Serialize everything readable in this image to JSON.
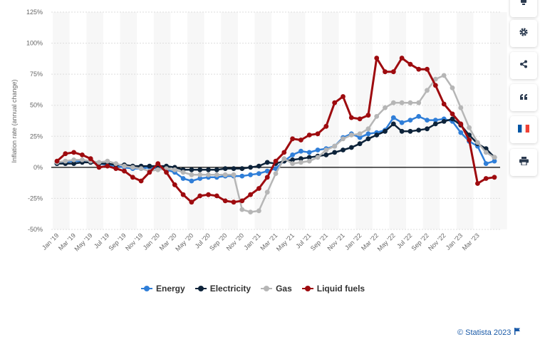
{
  "chart_data": {
    "type": "line",
    "title": "",
    "xlabel": "",
    "ylabel": "Inflation rate (annual change)",
    "ylim": [
      -50,
      125
    ],
    "yticks": [
      "125%",
      "100%",
      "75%",
      "50%",
      "25%",
      "0%",
      "-25%",
      "-50%"
    ],
    "ytick_values": [
      125,
      100,
      75,
      50,
      25,
      0,
      -25,
      -50
    ],
    "grid": true,
    "legend": "bottom",
    "x": [
      "Jan '19",
      "Feb '19",
      "Mar '19",
      "Apr '19",
      "May '19",
      "Jun '19",
      "Jul '19",
      "Aug '19",
      "Sep '19",
      "Oct '19",
      "Nov '19",
      "Dec '19",
      "Jan '20",
      "Feb '20",
      "Mar '20",
      "Apr '20",
      "May '20",
      "Jun '20",
      "Jul '20",
      "Aug '20",
      "Sep '20",
      "Oct '20",
      "Nov '20",
      "Dec '20",
      "Jan '21",
      "Feb '21",
      "Mar '21",
      "Apr '21",
      "May '21",
      "Jun '21",
      "Jul '21",
      "Aug '21",
      "Sep '21",
      "Oct '21",
      "Nov '21",
      "Dec '21",
      "Jan '22",
      "Feb '22",
      "Mar '22",
      "Apr '22",
      "May '22",
      "Jun '22",
      "Jul '22",
      "Aug '22",
      "Sep '22",
      "Oct '22",
      "Nov '22",
      "Dec '22",
      "Jan '23",
      "Feb '23",
      "Mar '23",
      "Apr '23",
      "May '23"
    ],
    "xtick_labels": [
      "Jan '19",
      "Mar '19",
      "May '19",
      "Jul '19",
      "Sep '19",
      "Nov '19",
      "Jan '20",
      "Mar '20",
      "May '20",
      "Jul '20",
      "Sep '20",
      "Nov '20",
      "Jan '21",
      "Mar '21",
      "May '21",
      "Jul '21",
      "Sep '21",
      "Nov '21",
      "Jan '22",
      "Mar '22",
      "May '22",
      "Jul '22",
      "Sep '22",
      "Nov '22",
      "Jan '23",
      "Mar '23"
    ],
    "series": [
      {
        "name": "Energy",
        "color": "#2f7ed8",
        "values": [
          3,
          4,
          5,
          5,
          5,
          3,
          2,
          1,
          0,
          -1,
          -1,
          0,
          -1,
          -2,
          -4,
          -9,
          -11,
          -9,
          -8,
          -8,
          -7,
          -7,
          -7,
          -6,
          -5,
          -3,
          -1,
          5,
          10,
          13,
          12,
          14,
          15,
          17,
          24,
          27,
          24,
          27,
          28,
          30,
          40,
          36,
          38,
          41,
          38,
          38,
          39,
          37,
          28,
          21,
          17,
          3,
          5
        ]
      },
      {
        "name": "Electricity",
        "color": "#0d233a",
        "values": [
          3,
          3,
          3,
          4,
          4,
          3,
          3,
          2,
          2,
          1,
          1,
          1,
          1,
          1,
          0,
          -2,
          -2,
          -2,
          -2,
          -2,
          -1,
          -1,
          -1,
          0,
          1,
          4,
          3,
          5,
          6,
          7,
          8,
          9,
          10,
          12,
          14,
          16,
          19,
          23,
          26,
          29,
          35,
          29,
          29,
          30,
          31,
          35,
          37,
          39,
          34,
          26,
          19,
          15,
          8
        ]
      },
      {
        "name": "Gas",
        "color": "#b6b6b6",
        "values": [
          4,
          5,
          6,
          6,
          5,
          4,
          5,
          3,
          1,
          0,
          -1,
          -3,
          -2,
          -1,
          -2,
          -4,
          -6,
          -6,
          -6,
          -6,
          -6,
          -6,
          -34,
          -36,
          -35,
          -20,
          -5,
          7,
          3,
          4,
          5,
          8,
          14,
          17,
          23,
          26,
          27,
          31,
          41,
          48,
          52,
          52,
          52,
          52,
          62,
          71,
          74,
          64,
          48,
          32,
          20,
          12,
          8
        ]
      },
      {
        "name": "Liquid fuels",
        "color": "#9e0b0f",
        "values": [
          5,
          11,
          12,
          10,
          7,
          0,
          1,
          -1,
          -3,
          -8,
          -11,
          -4,
          3,
          -4,
          -14,
          -22,
          -28,
          -23,
          -22,
          -23,
          -27,
          -28,
          -27,
          -22,
          -17,
          -8,
          5,
          12,
          23,
          22,
          26,
          27,
          33,
          52,
          57,
          40,
          39,
          42,
          88,
          77,
          77,
          88,
          83,
          79,
          79,
          66,
          51,
          43,
          35,
          22,
          -13,
          -9,
          -8
        ]
      }
    ]
  },
  "legend": {
    "items": [
      {
        "label": "Energy",
        "color": "#2f7ed8"
      },
      {
        "label": "Electricity",
        "color": "#0d233a"
      },
      {
        "label": "Gas",
        "color": "#b6b6b6"
      },
      {
        "label": "Liquid fuels",
        "color": "#9e0b0f"
      }
    ]
  },
  "toolbar": {
    "icons": [
      "notification-icon",
      "gear-icon",
      "share-icon",
      "quote-icon",
      "french-flag-icon",
      "print-icon"
    ]
  },
  "credit": {
    "text": "© Statista 2023"
  }
}
